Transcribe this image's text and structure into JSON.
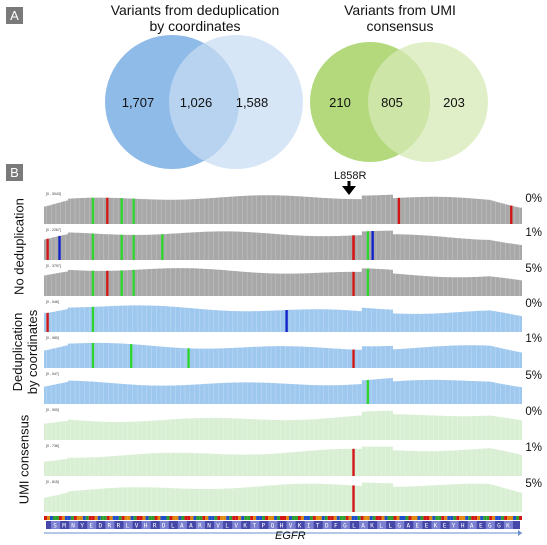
{
  "panels": {
    "a": "A",
    "b": "B"
  },
  "venn": [
    {
      "title_line1": "Variants from deduplication",
      "title_line2": "by coordinates",
      "left": "1,707",
      "center": "1,026",
      "right": "1,588",
      "colors": {
        "left": "#8fbbe9",
        "right": "#d6e6f7",
        "overlap": "#b8d3ef"
      }
    },
    {
      "title_line1": "Variants from UMI",
      "title_line2": "consensus",
      "left": "210",
      "center": "805",
      "right": "203",
      "colors": {
        "left": "#b3d97c",
        "right": "#e1efc9",
        "overlap": "#cde5a6"
      }
    }
  ],
  "mutation": {
    "label": "L858R"
  },
  "groups": [
    {
      "label_line1": "No deduplication",
      "label_line2": "",
      "color": "#a8a8a8",
      "tracks": [
        {
          "range": "[0 - 3043]",
          "pct": "0%"
        },
        {
          "range": "[0 - 2267]",
          "pct": "1%"
        },
        {
          "range": "[0 - 3797]",
          "pct": "5%"
        }
      ]
    },
    {
      "label_line1": "Deduplication",
      "label_line2": "by coordinates",
      "color": "#9fc8ef",
      "tracks": [
        {
          "range": "[0 - 946]",
          "pct": "0%"
        },
        {
          "range": "[0 - 980]",
          "pct": "1%"
        },
        {
          "range": "[0 - 947]",
          "pct": "5%"
        }
      ]
    },
    {
      "label_line1": "UMI consensus",
      "label_line2": "",
      "color": "#d9efd4",
      "tracks": [
        {
          "range": "[0 - 900]",
          "pct": "0%"
        },
        {
          "range": "[0 - 736]",
          "pct": "1%"
        },
        {
          "range": "[0 - 815]",
          "pct": "5%"
        }
      ]
    }
  ],
  "gene": {
    "name": "EGFR",
    "sequence": "S M N Y E D R R L V H R D L A A R N V L V K T P Q H V K I T D F G L A K L L G A E E K E Y H A E G G K"
  }
}
